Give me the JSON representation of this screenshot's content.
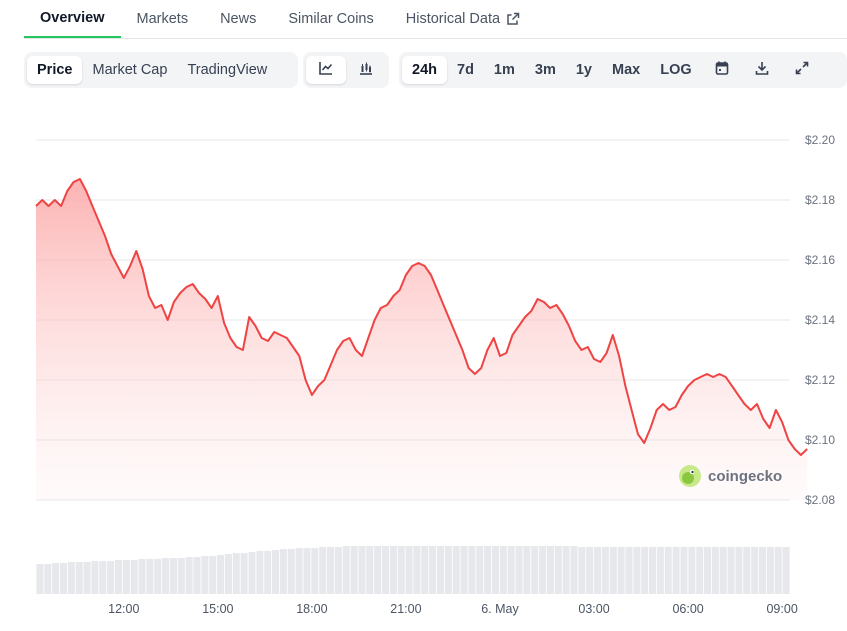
{
  "tabs": [
    {
      "label": "Overview",
      "active": true
    },
    {
      "label": "Markets"
    },
    {
      "label": "News"
    },
    {
      "label": "Similar Coins"
    },
    {
      "label": "Historical Data",
      "icon": "external-link-icon"
    }
  ],
  "toolbar": {
    "data_types": [
      "Price",
      "Market Cap",
      "TradingView"
    ],
    "data_type_selected": "Price",
    "chart_styles": [
      {
        "icon": "line-chart-icon",
        "selected": true
      },
      {
        "icon": "candlestick-chart-icon",
        "selected": false
      }
    ],
    "ranges": [
      "24h",
      "7d",
      "1m",
      "3m",
      "1y",
      "Max",
      "LOG"
    ],
    "range_selected": "24h",
    "actions": [
      "calendar-icon",
      "download-icon",
      "fullscreen-icon"
    ]
  },
  "watermark": {
    "text": "coingecko",
    "icon": "gecko-logo-icon"
  },
  "colors": {
    "line": "#ef4444",
    "fill_top": "#fca5a5",
    "grid": "#e5e7eb",
    "volume": "#d1d5db",
    "accent": "#22c55e"
  },
  "chart_data": {
    "type": "area",
    "y_tick_labels": [
      "$2.20",
      "$2.18",
      "$2.16",
      "$2.14",
      "$2.12",
      "$2.10",
      "$2.08"
    ],
    "y_ticks": [
      2.2,
      2.18,
      2.16,
      2.14,
      2.12,
      2.1,
      2.08
    ],
    "ylim": [
      2.08,
      2.2
    ],
    "x_tick_labels": [
      "12:00",
      "15:00",
      "18:00",
      "21:00",
      "6. May",
      "03:00",
      "06:00",
      "09:00"
    ],
    "x_ticks": [
      2.8,
      5.8,
      8.8,
      11.8,
      14.8,
      17.8,
      20.8,
      23.8
    ],
    "xlim": [
      0,
      24
    ],
    "grid": true,
    "series": [
      {
        "points": [
          [
            0.0,
            2.178
          ],
          [
            0.2,
            2.18
          ],
          [
            0.4,
            2.178
          ],
          [
            0.6,
            2.18
          ],
          [
            0.8,
            2.178
          ],
          [
            1.0,
            2.183
          ],
          [
            1.2,
            2.186
          ],
          [
            1.4,
            2.187
          ],
          [
            1.6,
            2.183
          ],
          [
            1.8,
            2.178
          ],
          [
            2.0,
            2.173
          ],
          [
            2.2,
            2.168
          ],
          [
            2.4,
            2.162
          ],
          [
            2.6,
            2.158
          ],
          [
            2.8,
            2.154
          ],
          [
            3.0,
            2.158
          ],
          [
            3.2,
            2.163
          ],
          [
            3.4,
            2.157
          ],
          [
            3.6,
            2.148
          ],
          [
            3.8,
            2.144
          ],
          [
            4.0,
            2.145
          ],
          [
            4.2,
            2.14
          ],
          [
            4.4,
            2.146
          ],
          [
            4.6,
            2.149
          ],
          [
            4.8,
            2.151
          ],
          [
            5.0,
            2.152
          ],
          [
            5.2,
            2.149
          ],
          [
            5.4,
            2.147
          ],
          [
            5.6,
            2.144
          ],
          [
            5.8,
            2.148
          ],
          [
            6.0,
            2.139
          ],
          [
            6.2,
            2.134
          ],
          [
            6.4,
            2.131
          ],
          [
            6.6,
            2.13
          ],
          [
            6.8,
            2.141
          ],
          [
            7.0,
            2.138
          ],
          [
            7.2,
            2.134
          ],
          [
            7.4,
            2.133
          ],
          [
            7.6,
            2.136
          ],
          [
            7.8,
            2.135
          ],
          [
            8.0,
            2.134
          ],
          [
            8.2,
            2.131
          ],
          [
            8.4,
            2.128
          ],
          [
            8.6,
            2.12
          ],
          [
            8.8,
            2.115
          ],
          [
            9.0,
            2.118
          ],
          [
            9.2,
            2.12
          ],
          [
            9.4,
            2.125
          ],
          [
            9.6,
            2.13
          ],
          [
            9.8,
            2.133
          ],
          [
            10.0,
            2.134
          ],
          [
            10.2,
            2.13
          ],
          [
            10.4,
            2.128
          ],
          [
            10.6,
            2.134
          ],
          [
            10.8,
            2.14
          ],
          [
            11.0,
            2.144
          ],
          [
            11.2,
            2.145
          ],
          [
            11.4,
            2.148
          ],
          [
            11.6,
            2.15
          ],
          [
            11.8,
            2.155
          ],
          [
            12.0,
            2.158
          ],
          [
            12.2,
            2.159
          ],
          [
            12.4,
            2.158
          ],
          [
            12.6,
            2.155
          ],
          [
            12.8,
            2.15
          ],
          [
            13.0,
            2.145
          ],
          [
            13.2,
            2.14
          ],
          [
            13.4,
            2.135
          ],
          [
            13.6,
            2.13
          ],
          [
            13.8,
            2.124
          ],
          [
            14.0,
            2.122
          ],
          [
            14.2,
            2.124
          ],
          [
            14.4,
            2.13
          ],
          [
            14.6,
            2.134
          ],
          [
            14.8,
            2.128
          ],
          [
            15.0,
            2.129
          ],
          [
            15.2,
            2.135
          ],
          [
            15.4,
            2.138
          ],
          [
            15.6,
            2.141
          ],
          [
            15.8,
            2.143
          ],
          [
            16.0,
            2.147
          ],
          [
            16.2,
            2.146
          ],
          [
            16.4,
            2.144
          ],
          [
            16.6,
            2.145
          ],
          [
            16.8,
            2.142
          ],
          [
            17.0,
            2.138
          ],
          [
            17.2,
            2.133
          ],
          [
            17.4,
            2.13
          ],
          [
            17.6,
            2.131
          ],
          [
            17.8,
            2.127
          ],
          [
            18.0,
            2.126
          ],
          [
            18.2,
            2.129
          ],
          [
            18.4,
            2.135
          ],
          [
            18.6,
            2.128
          ],
          [
            18.8,
            2.118
          ],
          [
            19.0,
            2.11
          ],
          [
            19.2,
            2.102
          ],
          [
            19.4,
            2.099
          ],
          [
            19.6,
            2.104
          ],
          [
            19.8,
            2.11
          ],
          [
            20.0,
            2.112
          ],
          [
            20.2,
            2.11
          ],
          [
            20.4,
            2.111
          ],
          [
            20.6,
            2.115
          ],
          [
            20.8,
            2.118
          ],
          [
            21.0,
            2.12
          ],
          [
            21.2,
            2.121
          ],
          [
            21.4,
            2.122
          ],
          [
            21.6,
            2.121
          ],
          [
            21.8,
            2.122
          ],
          [
            22.0,
            2.121
          ],
          [
            22.2,
            2.118
          ],
          [
            22.4,
            2.115
          ],
          [
            22.6,
            2.112
          ],
          [
            22.8,
            2.11
          ],
          [
            23.0,
            2.112
          ],
          [
            23.2,
            2.107
          ],
          [
            23.4,
            2.104
          ],
          [
            23.6,
            2.11
          ],
          [
            23.8,
            2.106
          ],
          [
            24.0,
            2.1
          ],
          [
            24.2,
            2.097
          ],
          [
            24.4,
            2.095
          ],
          [
            24.6,
            2.097
          ]
        ]
      }
    ],
    "volume": [
      30,
      30,
      31,
      31,
      32,
      32,
      32,
      33,
      33,
      33,
      34,
      34,
      34,
      35,
      35,
      35,
      36,
      36,
      36,
      37,
      37,
      38,
      38,
      39,
      40,
      41,
      41,
      42,
      43,
      43,
      44,
      45,
      45,
      46,
      46,
      46,
      47,
      47,
      47,
      48,
      48,
      48,
      48,
      48,
      48,
      48,
      48,
      48,
      48,
      48,
      48,
      48,
      48,
      48,
      48,
      48,
      48,
      48,
      48,
      48,
      48,
      48,
      48,
      48,
      48,
      48,
      48,
      48,
      48,
      47,
      47,
      47,
      47,
      47,
      47,
      47,
      47,
      47,
      47,
      47,
      47,
      47,
      47,
      47,
      47,
      47,
      47,
      47,
      47,
      47,
      47,
      47,
      47,
      47,
      47,
      47
    ]
  }
}
